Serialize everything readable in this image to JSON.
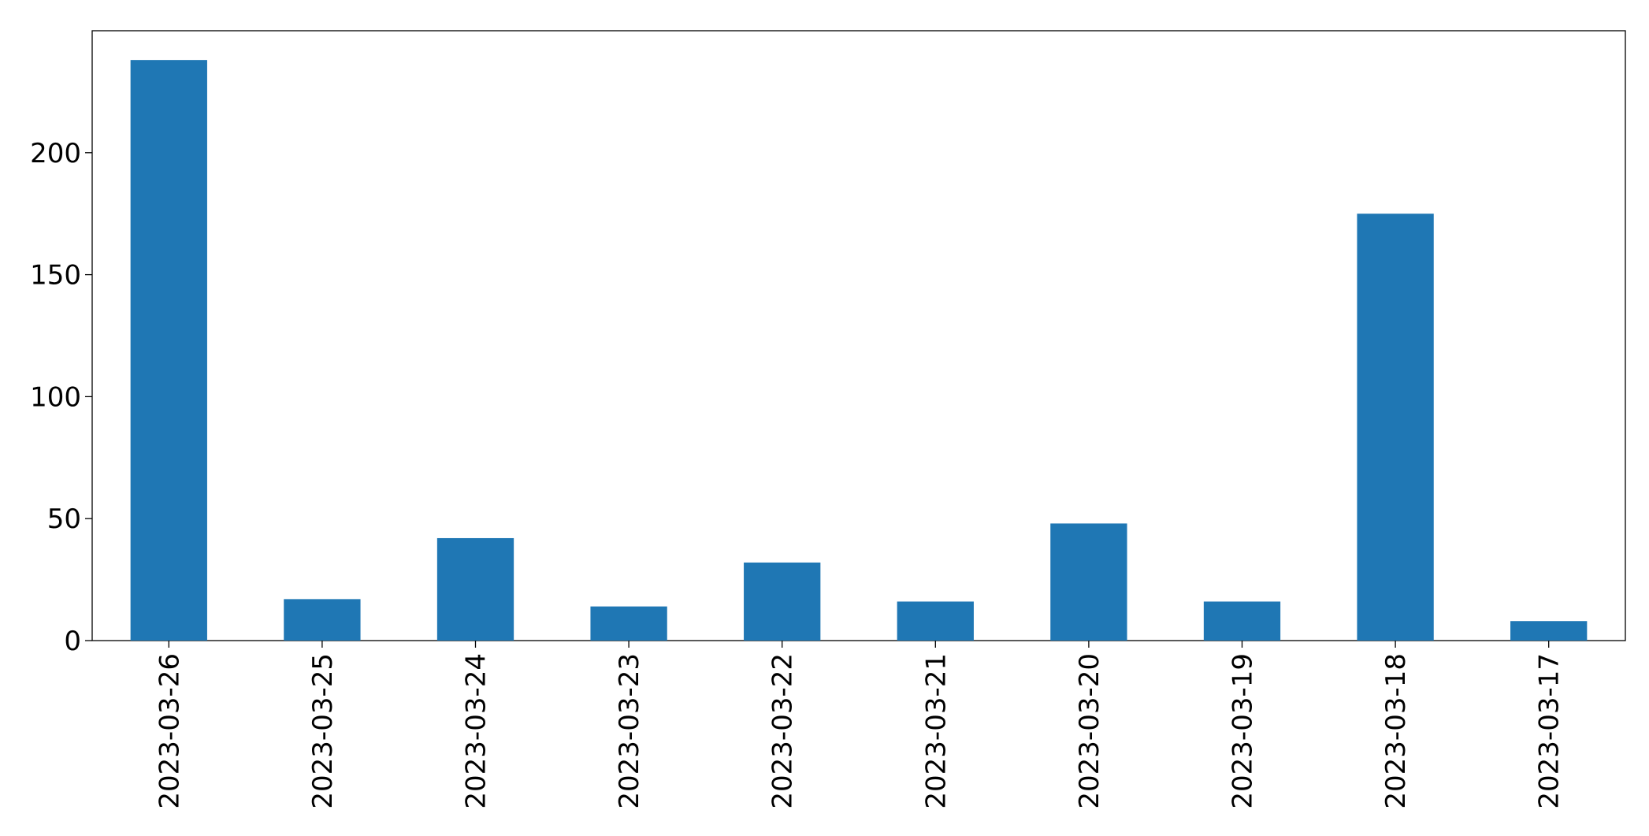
{
  "chart_data": {
    "type": "bar",
    "categories": [
      "2023-03-26",
      "2023-03-25",
      "2023-03-24",
      "2023-03-23",
      "2023-03-22",
      "2023-03-21",
      "2023-03-20",
      "2023-03-19",
      "2023-03-18",
      "2023-03-17"
    ],
    "values": [
      238,
      17,
      42,
      14,
      32,
      16,
      48,
      16,
      175,
      8
    ],
    "color": "#1f77b4",
    "ylim": [
      0,
      250
    ],
    "yticks": [
      0,
      50,
      100,
      150,
      200
    ],
    "grid": false
  }
}
